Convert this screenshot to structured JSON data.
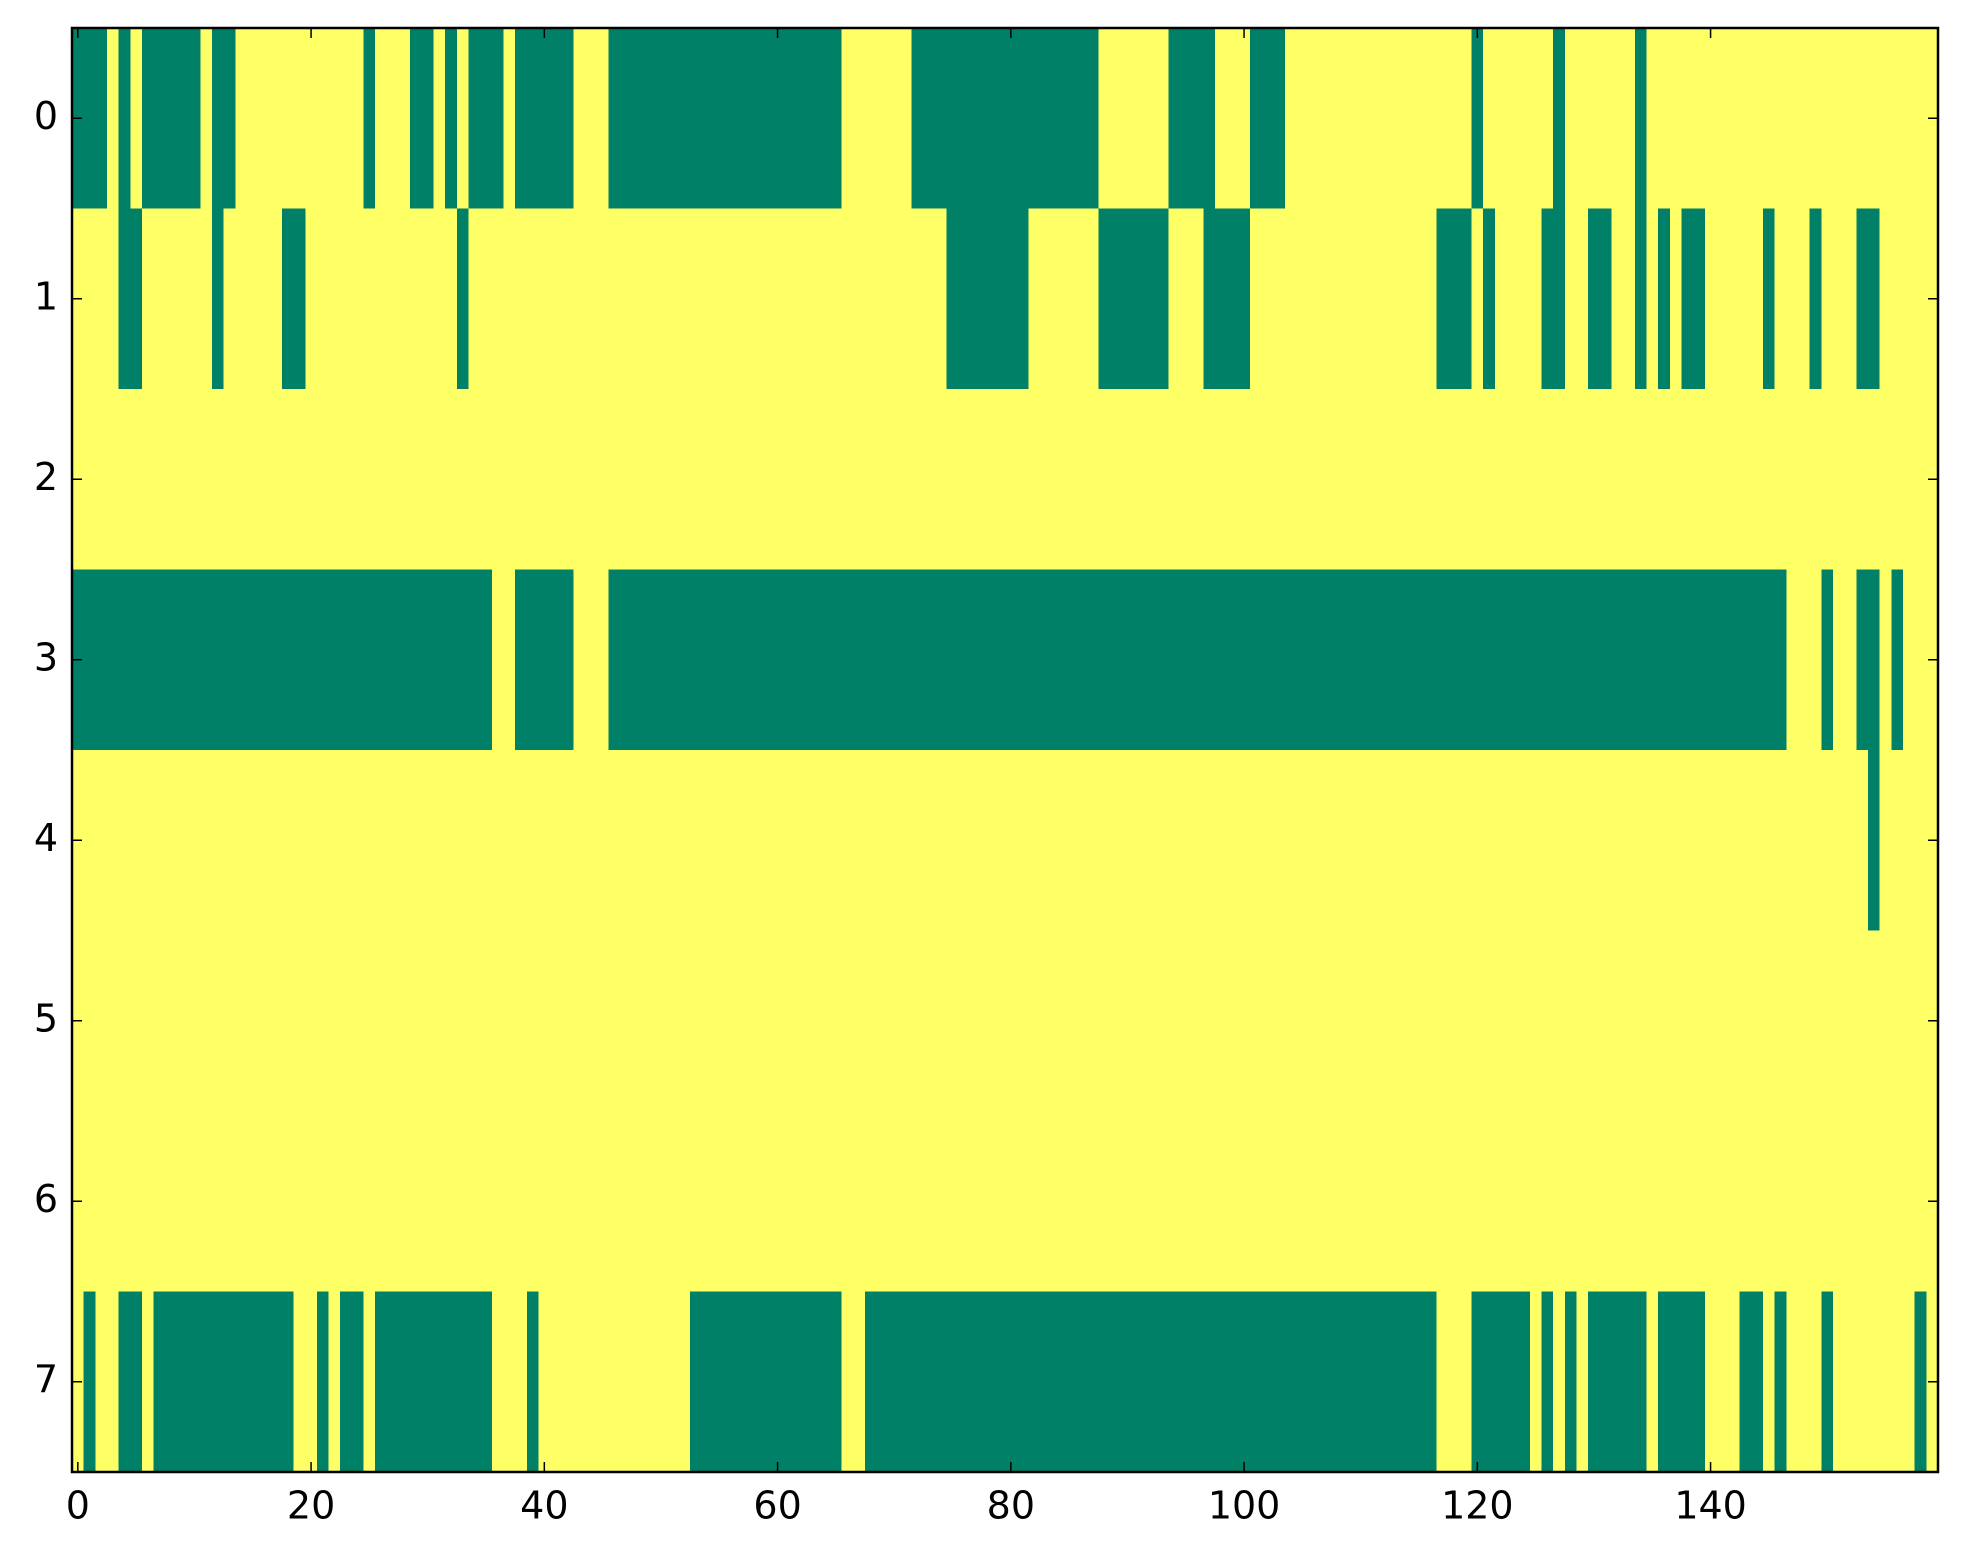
{
  "chart_data": {
    "type": "heatmap",
    "colors": [
      "#008066",
      "#ffff66"
    ],
    "xlim": [
      -0.5,
      159.5
    ],
    "ylim": [
      7.5,
      -0.5
    ],
    "xticks": [
      0,
      20,
      40,
      60,
      80,
      100,
      120,
      140
    ],
    "yticks": [
      0,
      1,
      2,
      3,
      4,
      5,
      6,
      7
    ],
    "z": [
      [
        0,
        0,
        0,
        1,
        0,
        1,
        0,
        0,
        0,
        0,
        0,
        1,
        0,
        0,
        1,
        1,
        1,
        1,
        1,
        1,
        1,
        1,
        1,
        1,
        1,
        0,
        1,
        1,
        1,
        0,
        0,
        1,
        0,
        1,
        0,
        0,
        0,
        1,
        0,
        0,
        0,
        0,
        0,
        1,
        1,
        1,
        0,
        0,
        0,
        0,
        0,
        0,
        0,
        0,
        0,
        0,
        0,
        0,
        0,
        0,
        0,
        0,
        0,
        0,
        0,
        0,
        1,
        1,
        1,
        1,
        1,
        1,
        0,
        0,
        0,
        0,
        0,
        0,
        0,
        0,
        0,
        0,
        0,
        0,
        0,
        0,
        0,
        0,
        1,
        1,
        1,
        1,
        1,
        1,
        0,
        0,
        0,
        0,
        1,
        1,
        1,
        0,
        0,
        0,
        1,
        1,
        1,
        1,
        1,
        1,
        1,
        1,
        1,
        1,
        1,
        1,
        1,
        1,
        1,
        1,
        0,
        1,
        1,
        1,
        1,
        1,
        1,
        0,
        1,
        1,
        1,
        1,
        1,
        1,
        0,
        1,
        1,
        1,
        1,
        1,
        1,
        1,
        1,
        1,
        1,
        1,
        1,
        1,
        1,
        1,
        1,
        1,
        1,
        1,
        1,
        1,
        1,
        1,
        1,
        1
      ],
      [
        1,
        1,
        1,
        1,
        0,
        0,
        1,
        1,
        1,
        1,
        1,
        1,
        0,
        1,
        1,
        1,
        1,
        1,
        0,
        0,
        1,
        1,
        1,
        1,
        1,
        1,
        1,
        1,
        1,
        1,
        1,
        1,
        1,
        0,
        1,
        1,
        1,
        1,
        1,
        1,
        1,
        1,
        1,
        1,
        1,
        1,
        1,
        1,
        1,
        1,
        1,
        1,
        1,
        1,
        1,
        1,
        1,
        1,
        1,
        1,
        1,
        1,
        1,
        1,
        1,
        1,
        1,
        1,
        1,
        1,
        1,
        1,
        1,
        1,
        1,
        0,
        0,
        0,
        0,
        0,
        0,
        0,
        1,
        1,
        1,
        1,
        1,
        1,
        0,
        0,
        0,
        0,
        0,
        0,
        1,
        1,
        1,
        0,
        0,
        0,
        0,
        1,
        1,
        1,
        1,
        1,
        1,
        1,
        1,
        1,
        1,
        1,
        1,
        1,
        1,
        1,
        1,
        0,
        0,
        0,
        1,
        0,
        1,
        1,
        1,
        1,
        0,
        0,
        1,
        1,
        0,
        0,
        1,
        1,
        0,
        1,
        0,
        1,
        0,
        0,
        1,
        1,
        1,
        1,
        1,
        0,
        1,
        1,
        1,
        0,
        1,
        1,
        1,
        0,
        0,
        1,
        1,
        1,
        1,
        1
      ],
      [
        1,
        1,
        1,
        1,
        1,
        1,
        1,
        1,
        1,
        1,
        1,
        1,
        1,
        1,
        1,
        1,
        1,
        1,
        1,
        1,
        1,
        1,
        1,
        1,
        1,
        1,
        1,
        1,
        1,
        1,
        1,
        1,
        1,
        1,
        1,
        1,
        1,
        1,
        1,
        1,
        1,
        1,
        1,
        1,
        1,
        1,
        1,
        1,
        1,
        1,
        1,
        1,
        1,
        1,
        1,
        1,
        1,
        1,
        1,
        1,
        1,
        1,
        1,
        1,
        1,
        1,
        1,
        1,
        1,
        1,
        1,
        1,
        1,
        1,
        1,
        1,
        1,
        1,
        1,
        1,
        1,
        1,
        1,
        1,
        1,
        1,
        1,
        1,
        1,
        1,
        1,
        1,
        1,
        1,
        1,
        1,
        1,
        1,
        1,
        1,
        1,
        1,
        1,
        1,
        1,
        1,
        1,
        1,
        1,
        1,
        1,
        1,
        1,
        1,
        1,
        1,
        1,
        1,
        1,
        1,
        1,
        1,
        1,
        1,
        1,
        1,
        1,
        1,
        1,
        1,
        1,
        1,
        1,
        1,
        1,
        1,
        1,
        1,
        1,
        1,
        1,
        1,
        1,
        1,
        1,
        1,
        1,
        1,
        1,
        1,
        1,
        1,
        1,
        1,
        1,
        1,
        1,
        1,
        1,
        1
      ],
      [
        0,
        0,
        0,
        0,
        0,
        0,
        0,
        0,
        0,
        0,
        0,
        0,
        0,
        0,
        0,
        0,
        0,
        0,
        0,
        0,
        0,
        0,
        0,
        0,
        0,
        0,
        0,
        0,
        0,
        0,
        0,
        0,
        0,
        0,
        0,
        0,
        1,
        1,
        0,
        0,
        0,
        0,
        0,
        1,
        1,
        1,
        0,
        0,
        0,
        0,
        0,
        0,
        0,
        0,
        0,
        0,
        0,
        0,
        0,
        0,
        0,
        0,
        0,
        0,
        0,
        0,
        0,
        0,
        0,
        0,
        0,
        0,
        0,
        0,
        0,
        0,
        0,
        0,
        0,
        0,
        0,
        0,
        0,
        0,
        0,
        0,
        0,
        0,
        0,
        0,
        0,
        0,
        0,
        0,
        0,
        0,
        0,
        0,
        0,
        0,
        0,
        0,
        0,
        0,
        0,
        0,
        0,
        0,
        0,
        0,
        0,
        0,
        0,
        0,
        0,
        0,
        0,
        0,
        0,
        0,
        0,
        0,
        0,
        0,
        0,
        0,
        0,
        0,
        0,
        0,
        0,
        0,
        0,
        0,
        0,
        0,
        0,
        0,
        0,
        0,
        0,
        0,
        0,
        0,
        0,
        0,
        0,
        1,
        1,
        1,
        0,
        1,
        1,
        0,
        0,
        1,
        0,
        1,
        1,
        1
      ],
      [
        1,
        1,
        1,
        1,
        1,
        1,
        1,
        1,
        1,
        1,
        1,
        1,
        1,
        1,
        1,
        1,
        1,
        1,
        1,
        1,
        1,
        1,
        1,
        1,
        1,
        1,
        1,
        1,
        1,
        1,
        1,
        1,
        1,
        1,
        1,
        1,
        1,
        1,
        1,
        1,
        1,
        1,
        1,
        1,
        1,
        1,
        1,
        1,
        1,
        1,
        1,
        1,
        1,
        1,
        1,
        1,
        1,
        1,
        1,
        1,
        1,
        1,
        1,
        1,
        1,
        1,
        1,
        1,
        1,
        1,
        1,
        1,
        1,
        1,
        1,
        1,
        1,
        1,
        1,
        1,
        1,
        1,
        1,
        1,
        1,
        1,
        1,
        1,
        1,
        1,
        1,
        1,
        1,
        1,
        1,
        1,
        1,
        1,
        1,
        1,
        1,
        1,
        1,
        1,
        1,
        1,
        1,
        1,
        1,
        1,
        1,
        1,
        1,
        1,
        1,
        1,
        1,
        1,
        1,
        1,
        1,
        1,
        1,
        1,
        1,
        1,
        1,
        1,
        1,
        1,
        1,
        1,
        1,
        1,
        1,
        1,
        1,
        1,
        1,
        1,
        1,
        1,
        1,
        1,
        1,
        1,
        1,
        1,
        1,
        1,
        1,
        1,
        1,
        1,
        0,
        1,
        1,
        1,
        1,
        1
      ],
      [
        1,
        1,
        1,
        1,
        1,
        1,
        1,
        1,
        1,
        1,
        1,
        1,
        1,
        1,
        1,
        1,
        1,
        1,
        1,
        1,
        1,
        1,
        1,
        1,
        1,
        1,
        1,
        1,
        1,
        1,
        1,
        1,
        1,
        1,
        1,
        1,
        1,
        1,
        1,
        1,
        1,
        1,
        1,
        1,
        1,
        1,
        1,
        1,
        1,
        1,
        1,
        1,
        1,
        1,
        1,
        1,
        1,
        1,
        1,
        1,
        1,
        1,
        1,
        1,
        1,
        1,
        1,
        1,
        1,
        1,
        1,
        1,
        1,
        1,
        1,
        1,
        1,
        1,
        1,
        1,
        1,
        1,
        1,
        1,
        1,
        1,
        1,
        1,
        1,
        1,
        1,
        1,
        1,
        1,
        1,
        1,
        1,
        1,
        1,
        1,
        1,
        1,
        1,
        1,
        1,
        1,
        1,
        1,
        1,
        1,
        1,
        1,
        1,
        1,
        1,
        1,
        1,
        1,
        1,
        1,
        1,
        1,
        1,
        1,
        1,
        1,
        1,
        1,
        1,
        1,
        1,
        1,
        1,
        1,
        1,
        1,
        1,
        1,
        1,
        1,
        1,
        1,
        1,
        1,
        1,
        1,
        1,
        1,
        1,
        1,
        1,
        1,
        1,
        1,
        1,
        1,
        1,
        1,
        1,
        1
      ],
      [
        1,
        1,
        1,
        1,
        1,
        1,
        1,
        1,
        1,
        1,
        1,
        1,
        1,
        1,
        1,
        1,
        1,
        1,
        1,
        1,
        1,
        1,
        1,
        1,
        1,
        1,
        1,
        1,
        1,
        1,
        1,
        1,
        1,
        1,
        1,
        1,
        1,
        1,
        1,
        1,
        1,
        1,
        1,
        1,
        1,
        1,
        1,
        1,
        1,
        1,
        1,
        1,
        1,
        1,
        1,
        1,
        1,
        1,
        1,
        1,
        1,
        1,
        1,
        1,
        1,
        1,
        1,
        1,
        1,
        1,
        1,
        1,
        1,
        1,
        1,
        1,
        1,
        1,
        1,
        1,
        1,
        1,
        1,
        1,
        1,
        1,
        1,
        1,
        1,
        1,
        1,
        1,
        1,
        1,
        1,
        1,
        1,
        1,
        1,
        1,
        1,
        1,
        1,
        1,
        1,
        1,
        1,
        1,
        1,
        1,
        1,
        1,
        1,
        1,
        1,
        1,
        1,
        1,
        1,
        1,
        1,
        1,
        1,
        1,
        1,
        1,
        1,
        1,
        1,
        1,
        1,
        1,
        1,
        1,
        1,
        1,
        1,
        1,
        1,
        1,
        1,
        1,
        1,
        1,
        1,
        1,
        1,
        1,
        1,
        1,
        1,
        1,
        1,
        1,
        1,
        1,
        1,
        1,
        1,
        1
      ],
      [
        1,
        0,
        1,
        1,
        0,
        0,
        1,
        0,
        0,
        0,
        0,
        0,
        0,
        0,
        0,
        0,
        0,
        0,
        0,
        1,
        1,
        0,
        1,
        0,
        0,
        1,
        0,
        0,
        0,
        0,
        0,
        0,
        0,
        0,
        0,
        0,
        1,
        1,
        1,
        0,
        1,
        1,
        1,
        1,
        1,
        1,
        1,
        1,
        1,
        1,
        1,
        1,
        1,
        0,
        0,
        0,
        0,
        0,
        0,
        0,
        0,
        0,
        0,
        0,
        0,
        0,
        1,
        1,
        0,
        0,
        0,
        0,
        0,
        0,
        0,
        0,
        0,
        0,
        0,
        0,
        0,
        0,
        0,
        0,
        0,
        0,
        0,
        0,
        0,
        0,
        0,
        0,
        0,
        0,
        0,
        0,
        0,
        0,
        0,
        0,
        0,
        0,
        0,
        0,
        0,
        0,
        0,
        0,
        0,
        0,
        0,
        0,
        0,
        0,
        0,
        0,
        0,
        1,
        1,
        1,
        0,
        0,
        0,
        0,
        0,
        1,
        0,
        1,
        0,
        1,
        0,
        0,
        0,
        0,
        0,
        1,
        0,
        0,
        0,
        0,
        1,
        1,
        1,
        0,
        0,
        1,
        0,
        1,
        1,
        1,
        0,
        1,
        1,
        1,
        1,
        1,
        1,
        1,
        0,
        1
      ]
    ]
  }
}
